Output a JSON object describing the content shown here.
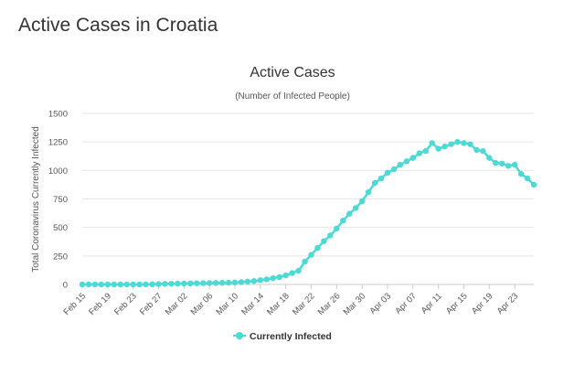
{
  "page": {
    "heading": "Active Cases in Croatia"
  },
  "colors": {
    "series": "#4dd9d4",
    "grid": "#e6e6e6",
    "axis": "#cccccc"
  },
  "chart_data": {
    "type": "line",
    "title": "Active Cases",
    "subtitle": "(Number of Infected People)",
    "ylabel": "Total Coronavirus Currently Infected",
    "xlabel": "",
    "ylim": [
      0,
      1500
    ],
    "yticks": [
      0,
      250,
      500,
      750,
      1000,
      1250,
      1500
    ],
    "grid": true,
    "legend_position": "bottom-center",
    "x": [
      "Feb 15",
      "Feb 16",
      "Feb 17",
      "Feb 18",
      "Feb 19",
      "Feb 20",
      "Feb 21",
      "Feb 22",
      "Feb 23",
      "Feb 24",
      "Feb 25",
      "Feb 26",
      "Feb 27",
      "Feb 28",
      "Feb 29",
      "Mar 01",
      "Mar 02",
      "Mar 03",
      "Mar 04",
      "Mar 05",
      "Mar 06",
      "Mar 07",
      "Mar 08",
      "Mar 09",
      "Mar 10",
      "Mar 11",
      "Mar 12",
      "Mar 13",
      "Mar 14",
      "Mar 15",
      "Mar 16",
      "Mar 17",
      "Mar 18",
      "Mar 19",
      "Mar 20",
      "Mar 21",
      "Mar 22",
      "Mar 23",
      "Mar 24",
      "Mar 25",
      "Mar 26",
      "Mar 27",
      "Mar 28",
      "Mar 29",
      "Mar 30",
      "Mar 31",
      "Apr 01",
      "Apr 02",
      "Apr 03",
      "Apr 04",
      "Apr 05",
      "Apr 06",
      "Apr 07",
      "Apr 08",
      "Apr 09",
      "Apr 10",
      "Apr 11",
      "Apr 12",
      "Apr 13",
      "Apr 14",
      "Apr 15",
      "Apr 16",
      "Apr 17",
      "Apr 18",
      "Apr 19",
      "Apr 20",
      "Apr 21",
      "Apr 22",
      "Apr 23",
      "Apr 24",
      "Apr 25",
      "Apr 26"
    ],
    "x_tick_labels": [
      "Feb 15",
      "Feb 19",
      "Feb 23",
      "Feb 27",
      "Mar 02",
      "Mar 06",
      "Mar 10",
      "Mar 14",
      "Mar 18",
      "Mar 22",
      "Mar 26",
      "Mar 30",
      "Apr 03",
      "Apr 07",
      "Apr 11",
      "Apr 15",
      "Apr 19",
      "Apr 23"
    ],
    "series": [
      {
        "name": "Currently Infected",
        "values": [
          0,
          0,
          0,
          0,
          0,
          0,
          0,
          0,
          0,
          0,
          1,
          2,
          3,
          5,
          6,
          7,
          8,
          9,
          10,
          11,
          12,
          13,
          14,
          15,
          17,
          20,
          25,
          30,
          38,
          45,
          55,
          65,
          80,
          100,
          120,
          200,
          260,
          320,
          380,
          430,
          490,
          560,
          620,
          670,
          730,
          810,
          890,
          930,
          980,
          1010,
          1050,
          1080,
          1110,
          1150,
          1170,
          1240,
          1190,
          1210,
          1230,
          1250,
          1240,
          1230,
          1180,
          1170,
          1110,
          1065,
          1060,
          1040,
          1050,
          970,
          930,
          875
        ]
      }
    ]
  }
}
